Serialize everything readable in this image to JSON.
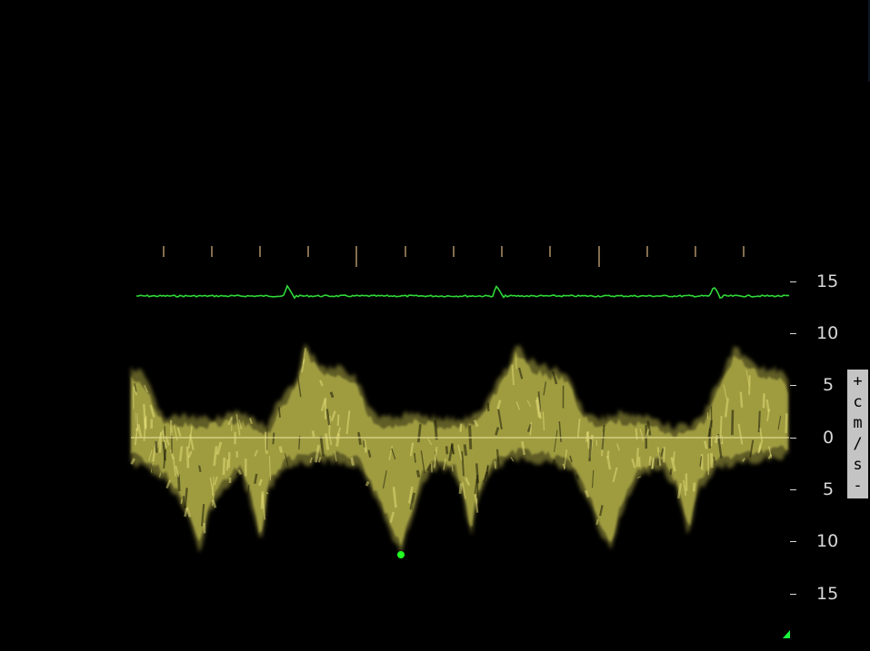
{
  "velocity_scale": {
    "labels": [
      "15",
      "10",
      "5",
      "0",
      "5",
      "10",
      "15"
    ],
    "unit_glyphs": [
      "+",
      "c",
      "m",
      "/",
      "s",
      "-"
    ]
  },
  "colors": {
    "background": "#000000",
    "spectrum": "#d4cf55",
    "baseline": "#e0d890",
    "ecg": "#2fd83a",
    "marker": "#22ff22",
    "time_ticks": "#c8a878",
    "scale_text": "#d8d8d8",
    "unit_badge": "#c4c4c4"
  },
  "ecg": {
    "r_wave_count": 3
  },
  "spectrum": {
    "peak_marker": "green-dot"
  },
  "icons": {
    "corner": "corner-triangle-icon"
  }
}
